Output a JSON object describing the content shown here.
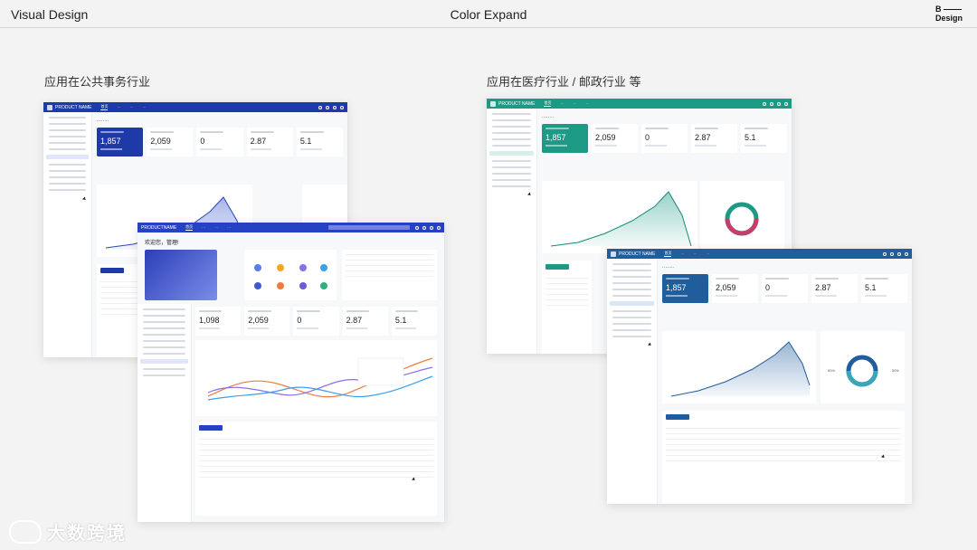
{
  "header": {
    "left_title": "Visual Design",
    "center_title": "Color Expand",
    "logo_line1": "B",
    "logo_line2": "Design"
  },
  "sections": {
    "left_heading": "应用在公共事务行业",
    "right_heading": "应用在医疗行业 / 邮政行业 等"
  },
  "colors": {
    "public_blue": "#1e3aa8",
    "medical_teal": "#1d9a86",
    "postal_blue": "#1f5d9c",
    "accent_orange": "#f5a623"
  },
  "mock_public": {
    "product_name": "PRODUCT NAME",
    "stats": [
      "1,857",
      "2,059",
      "0",
      "2.87",
      "5.1"
    ]
  },
  "mock_public_front": {
    "product_name": "PRODUCTNAME",
    "greeting": "欢迎您，管理!",
    "stats": [
      "1,098",
      "2,059",
      "0",
      "2.87",
      "5.1"
    ]
  },
  "mock_medical": {
    "product_name": "PRODUCT NAME",
    "stats": [
      "1,857",
      "2,059",
      "0",
      "2.87",
      "5.1"
    ]
  },
  "mock_postal": {
    "product_name": "PRODUCT NAME",
    "stats": [
      "1,857",
      "2,059",
      "0",
      "2.87",
      "5.1"
    ],
    "donut_left": "50%",
    "donut_right": "50%"
  },
  "watermark": {
    "text": "大数跨境"
  }
}
